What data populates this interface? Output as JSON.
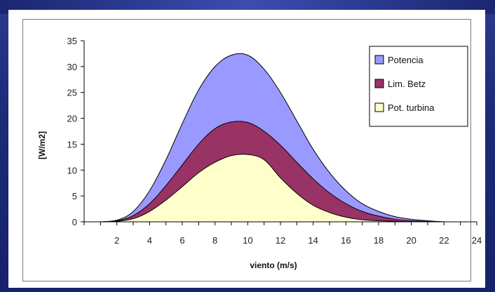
{
  "chart_data": {
    "type": "area",
    "title": "",
    "xlabel": "viento (m/s)",
    "ylabel": "[W/m2]",
    "xlim": [
      0,
      24
    ],
    "ylim": [
      0,
      35
    ],
    "x_ticks": [
      2,
      4,
      6,
      8,
      10,
      12,
      14,
      16,
      18,
      20,
      22,
      24
    ],
    "y_ticks": [
      0,
      5,
      10,
      15,
      20,
      25,
      30,
      35
    ],
    "grid": false,
    "legend_position": "top-right",
    "x": [
      1,
      2,
      3,
      4,
      5,
      6,
      7,
      8,
      9,
      10,
      11,
      12,
      13,
      14,
      15,
      16,
      17,
      18,
      19,
      20,
      21,
      22,
      23,
      24
    ],
    "series": [
      {
        "name": "Potencia",
        "color": "#9999ff",
        "values": [
          0,
          0.3,
          2,
          6,
          12,
          19,
          25.5,
          30,
          32.2,
          32.2,
          29.5,
          25,
          19.5,
          14,
          9.5,
          6,
          3.5,
          2,
          1,
          0.5,
          0.2,
          0,
          0,
          0
        ]
      },
      {
        "name": "Lim. Betz",
        "color": "#993366",
        "values": [
          0,
          0.2,
          1.2,
          3.5,
          7,
          11,
          15,
          18,
          19.3,
          19.2,
          17.5,
          14.8,
          11.5,
          8.3,
          5.6,
          3.5,
          2,
          1.1,
          0.5,
          0.2,
          0.1,
          0,
          0,
          0
        ]
      },
      {
        "name": "Pot. turbina",
        "color": "#ffffcc",
        "values": [
          0,
          0.1,
          0.6,
          2,
          4.2,
          6.8,
          9.5,
          11.5,
          12.8,
          13,
          12,
          8.5,
          5.5,
          3.2,
          1.8,
          0.9,
          0.4,
          0.2,
          0.1,
          0,
          0,
          0,
          0,
          0
        ]
      }
    ]
  }
}
